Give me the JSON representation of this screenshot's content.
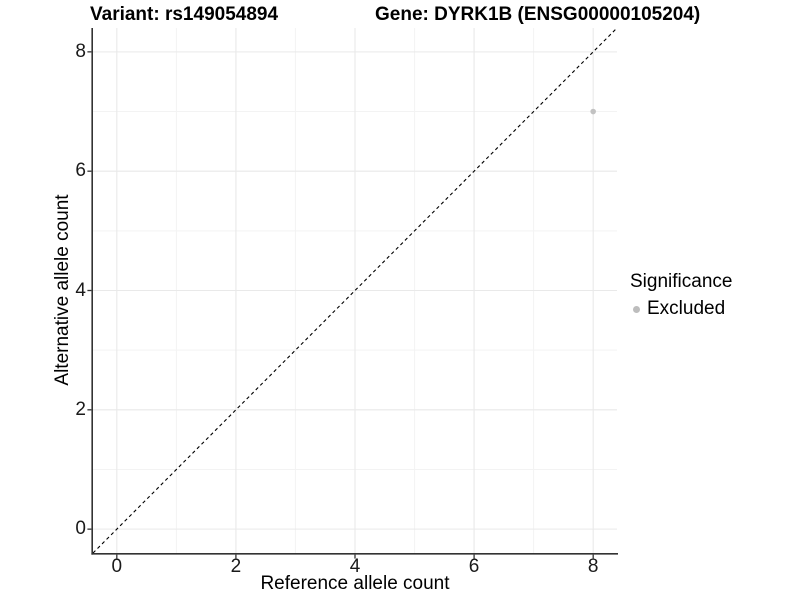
{
  "chart_data": {
    "type": "scatter",
    "title_left": "Variant: rs149054894",
    "title_right": "Gene: DYRK1B (ENSG00000105204)",
    "xlabel": "Reference allele count",
    "ylabel": "Alternative allele count",
    "xlim": [
      -0.4,
      8.4
    ],
    "ylim": [
      -0.4,
      8.4
    ],
    "xticks": [
      0,
      2,
      4,
      6,
      8
    ],
    "yticks": [
      0,
      2,
      4,
      6,
      8
    ],
    "xminor": [
      1,
      3,
      5,
      7
    ],
    "yminor": [
      1,
      3,
      5,
      7
    ],
    "grid": "major-and-minor",
    "identity_line": {
      "style": "dashed",
      "equation": "y = x",
      "from": [
        -0.4,
        -0.4
      ],
      "to": [
        8.4,
        8.4
      ]
    },
    "series": [
      {
        "name": "Excluded",
        "color": "#c2c2c2",
        "points": [
          {
            "x": 8,
            "y": 7
          }
        ]
      }
    ],
    "legend": {
      "title": "Significance",
      "position": "right",
      "entries": [
        {
          "label": "Excluded",
          "color": "#bdbdbd"
        }
      ]
    }
  },
  "colors": {
    "background": "#ffffff",
    "grid_major": "#e9e9e9",
    "grid_minor": "#f3f3f3",
    "axis_line": "#333333",
    "tick_mark": "#333333",
    "identity_line": "#000000"
  }
}
